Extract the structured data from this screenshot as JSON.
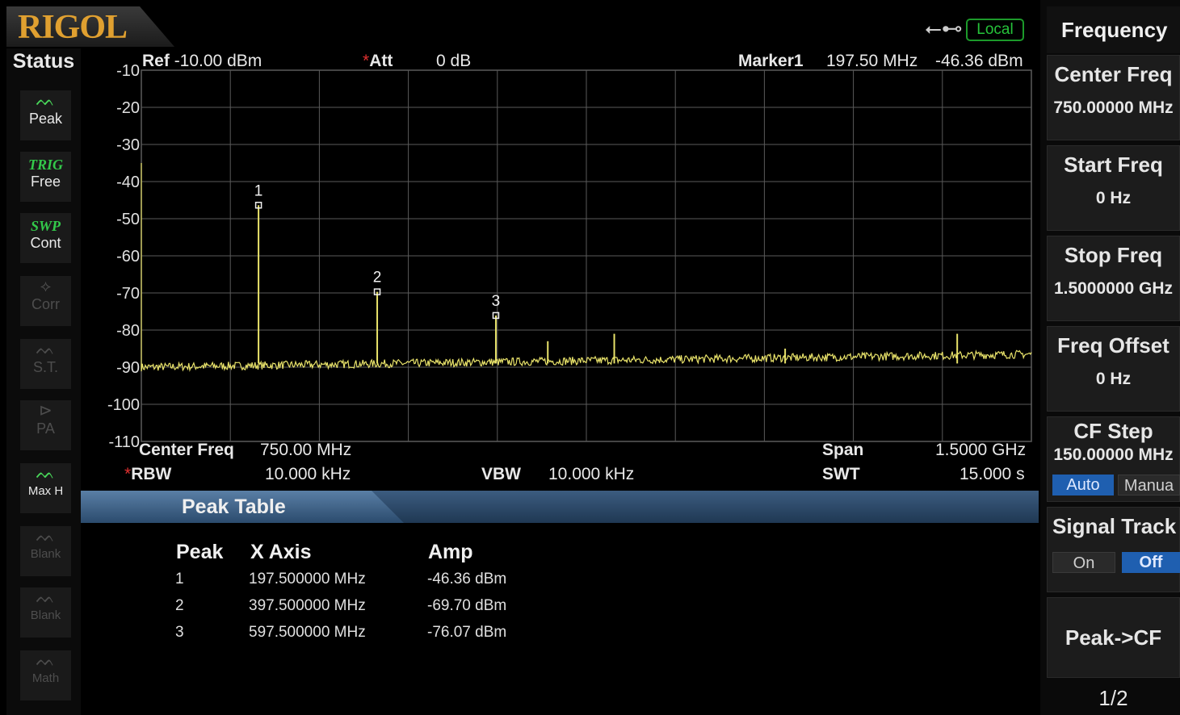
{
  "header": {
    "logo": "RIGOL",
    "usb_icon": "usb-icon",
    "remote_status": "Local"
  },
  "status": {
    "title": "Status",
    "items": [
      {
        "icon": "peak-wave-icon",
        "label": "Peak",
        "enabled": true
      },
      {
        "tag": "TRIG",
        "label": "Free",
        "enabled": true
      },
      {
        "tag": "SWP",
        "label": "Cont",
        "enabled": true
      },
      {
        "icon": "corr-icon",
        "label": "Corr",
        "enabled": false
      },
      {
        "icon": "st-wave-icon",
        "label": "S.T.",
        "enabled": false
      },
      {
        "icon": "pa-icon",
        "label": "PA",
        "enabled": false
      },
      {
        "icon": "trace-wave-icon",
        "label": "Max H",
        "enabled": true
      },
      {
        "icon": "trace-wave-icon",
        "label": "Blank",
        "enabled": false
      },
      {
        "icon": "trace-wave-icon",
        "label": "Blank",
        "enabled": false
      },
      {
        "icon": "math-wave-icon",
        "label": "Math",
        "enabled": false
      }
    ]
  },
  "plot_header": {
    "ref_label": "Ref",
    "ref_value": "-10.00 dBm",
    "att_label": "Att",
    "att_value": "0 dB",
    "marker_label": "Marker1",
    "marker_freq": "197.50 MHz",
    "marker_amp": "-46.36 dBm"
  },
  "plot_footer": {
    "center_label": "Center Freq",
    "center_value": "750.00 MHz",
    "span_label": "Span",
    "span_value": "1.5000 GHz",
    "rbw_label": "RBW",
    "rbw_value": "10.000 kHz",
    "vbw_label": "VBW",
    "vbw_value": "10.000 kHz",
    "swt_label": "SWT",
    "swt_value": "15.000 s"
  },
  "spectrum": {
    "x_range_mhz": [
      0,
      1500
    ],
    "y_range_dbm": [
      -110,
      -10
    ],
    "y_ticks": [
      "-10",
      "-20",
      "-30",
      "-40",
      "-50",
      "-60",
      "-70",
      "-80",
      "-90",
      "-100",
      "-110"
    ],
    "noise_floor_dbm": -90,
    "trace_color": "#e8e26a",
    "grid_color": "#5a5a5a",
    "peaks": [
      {
        "freq_mhz": 197.5,
        "amp_dbm": -46.36
      },
      {
        "freq_mhz": 397.5,
        "amp_dbm": -69.7
      },
      {
        "freq_mhz": 597.5,
        "amp_dbm": -76.07
      },
      {
        "freq_mhz": 685,
        "amp_dbm": -83
      },
      {
        "freq_mhz": 797,
        "amp_dbm": -81
      },
      {
        "freq_mhz": 1085,
        "amp_dbm": -85
      },
      {
        "freq_mhz": 1375,
        "amp_dbm": -81
      }
    ],
    "markers": [
      {
        "label": "1",
        "freq_mhz": 197.5,
        "amp_dbm": -46.36
      },
      {
        "label": "2",
        "freq_mhz": 397.5,
        "amp_dbm": -69.7
      },
      {
        "label": "3",
        "freq_mhz": 597.5,
        "amp_dbm": -76.07
      }
    ]
  },
  "peak_table": {
    "title": "Peak Table",
    "columns": [
      "Peak",
      "X Axis",
      "Amp"
    ],
    "rows": [
      [
        "1",
        "197.500000 MHz",
        "-46.36 dBm"
      ],
      [
        "2",
        "397.500000 MHz",
        "-69.70 dBm"
      ],
      [
        "3",
        "597.500000 MHz",
        "-76.07 dBm"
      ]
    ]
  },
  "menu": {
    "title": "Frequency",
    "center_freq": {
      "label": "Center Freq",
      "value": "750.00000 MHz"
    },
    "start_freq": {
      "label": "Start Freq",
      "value": "0 Hz"
    },
    "stop_freq": {
      "label": "Stop Freq",
      "value": "1.5000000 GHz"
    },
    "freq_offset": {
      "label": "Freq Offset",
      "value": "0 Hz"
    },
    "cf_step": {
      "label": "CF Step",
      "value": "150.00000 MHz",
      "auto": "Auto",
      "manual": "Manua"
    },
    "signal_track": {
      "label": "Signal Track",
      "on": "On",
      "off": "Off"
    },
    "peak_cf": {
      "label": "Peak->CF"
    },
    "page": "1/2",
    "active_color": "#1f5fb0"
  }
}
